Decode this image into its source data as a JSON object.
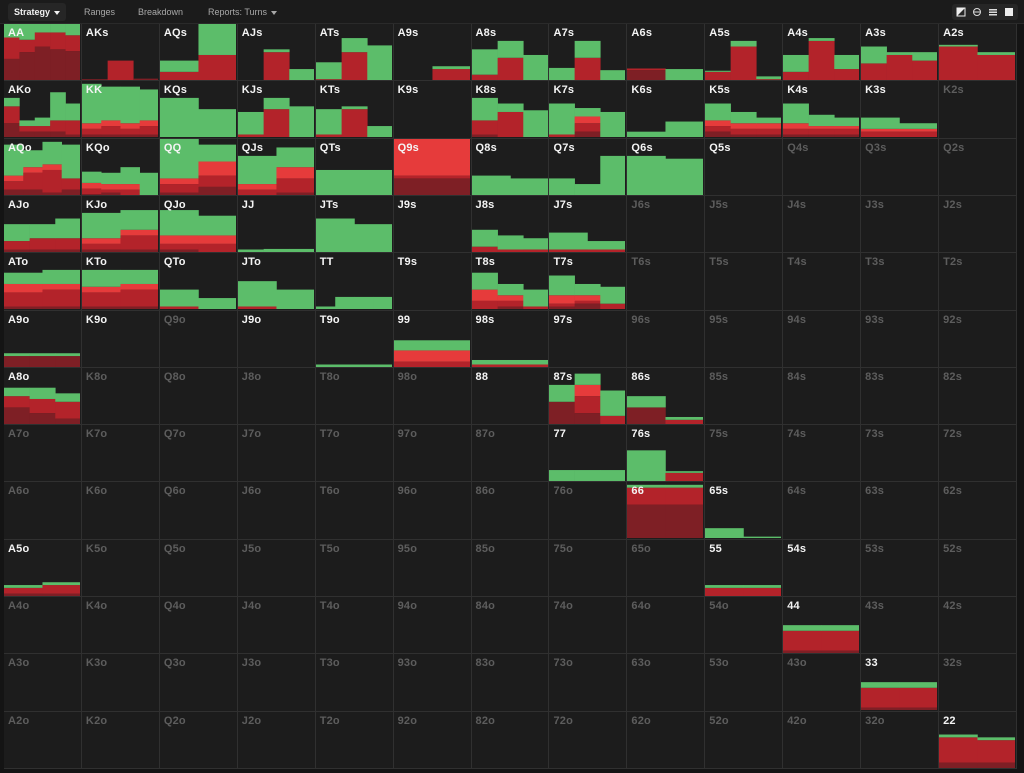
{
  "tabs": [
    {
      "id": "strategy",
      "label": "Strategy",
      "active": true,
      "dropdown": true
    },
    {
      "id": "ranges",
      "label": "Ranges",
      "active": false,
      "dropdown": false
    },
    {
      "id": "breakdown",
      "label": "Breakdown",
      "active": false,
      "dropdown": false
    },
    {
      "id": "reports",
      "label": "Reports: Turns",
      "active": false,
      "dropdown": true
    }
  ],
  "view_buttons": [
    "view-mode-1-icon",
    "view-mode-2-icon",
    "list-view-icon",
    "square-view-icon"
  ],
  "colors": {
    "green": "#5cbd6a",
    "red": "#b3232a",
    "bright_red": "#e63b3b",
    "dark_red": "#7e1f25",
    "cell_bg": "#1d1d1d"
  },
  "chart_data": {
    "type": "heatmap",
    "description_rows": [
      "A",
      "K",
      "Q",
      "J",
      "T",
      "9",
      "8",
      "7",
      "6",
      "5",
      "4",
      "3",
      "2"
    ],
    "hands": [
      [
        "AA",
        "AKs",
        "AQs",
        "AJs",
        "ATs",
        "A9s",
        "A8s",
        "A7s",
        "A6s",
        "A5s",
        "A4s",
        "A3s",
        "A2s"
      ],
      [
        "AKo",
        "KK",
        "KQs",
        "KJs",
        "KTs",
        "K9s",
        "K8s",
        "K7s",
        "K6s",
        "K5s",
        "K4s",
        "K3s",
        "K2s"
      ],
      [
        "AQo",
        "KQo",
        "QQ",
        "QJs",
        "QTs",
        "Q9s",
        "Q8s",
        "Q7s",
        "Q6s",
        "Q5s",
        "Q4s",
        "Q3s",
        "Q2s"
      ],
      [
        "AJo",
        "KJo",
        "QJo",
        "JJ",
        "JTs",
        "J9s",
        "J8s",
        "J7s",
        "J6s",
        "J5s",
        "J4s",
        "J3s",
        "J2s"
      ],
      [
        "ATo",
        "KTo",
        "QTo",
        "JTo",
        "TT",
        "T9s",
        "T8s",
        "T7s",
        "T6s",
        "T5s",
        "T4s",
        "T3s",
        "T2s"
      ],
      [
        "A9o",
        "K9o",
        "Q9o",
        "J9o",
        "T9o",
        "99",
        "98s",
        "97s",
        "96s",
        "95s",
        "94s",
        "93s",
        "92s"
      ],
      [
        "A8o",
        "K8o",
        "Q8o",
        "J8o",
        "T8o",
        "98o",
        "88",
        "87s",
        "86s",
        "85s",
        "84s",
        "83s",
        "82s"
      ],
      [
        "A7o",
        "K7o",
        "Q7o",
        "J7o",
        "T7o",
        "97o",
        "87o",
        "77",
        "76s",
        "75s",
        "74s",
        "73s",
        "72s"
      ],
      [
        "A6o",
        "K6o",
        "Q6o",
        "J6o",
        "T6o",
        "96o",
        "86o",
        "76o",
        "66",
        "65s",
        "64s",
        "63s",
        "62s"
      ],
      [
        "A5o",
        "K5o",
        "Q5o",
        "J5o",
        "T5o",
        "95o",
        "85o",
        "75o",
        "65o",
        "55",
        "54s",
        "53s",
        "52s"
      ],
      [
        "A4o",
        "K4o",
        "Q4o",
        "J4o",
        "T4o",
        "94o",
        "84o",
        "74o",
        "64o",
        "54o",
        "44",
        "43s",
        "42s"
      ],
      [
        "A3o",
        "K3o",
        "Q3o",
        "J3o",
        "T3o",
        "93o",
        "83o",
        "73o",
        "63o",
        "53o",
        "43o",
        "33",
        "32s"
      ],
      [
        "A2o",
        "K2o",
        "Q2o",
        "J2o",
        "T2o",
        "92o",
        "82o",
        "72o",
        "62o",
        "52o",
        "42o",
        "32o",
        "22"
      ]
    ],
    "active": [
      [
        1,
        1,
        1,
        1,
        1,
        1,
        1,
        1,
        1,
        1,
        1,
        1,
        1
      ],
      [
        1,
        1,
        1,
        1,
        1,
        1,
        1,
        1,
        1,
        1,
        1,
        1,
        0
      ],
      [
        1,
        1,
        1,
        1,
        1,
        1,
        1,
        1,
        1,
        1,
        0,
        0,
        0
      ],
      [
        1,
        1,
        1,
        1,
        1,
        1,
        1,
        1,
        0,
        0,
        0,
        0,
        0
      ],
      [
        1,
        1,
        1,
        1,
        1,
        1,
        1,
        1,
        0,
        0,
        0,
        0,
        0
      ],
      [
        1,
        1,
        0,
        1,
        1,
        1,
        1,
        1,
        0,
        0,
        0,
        0,
        0
      ],
      [
        1,
        0,
        0,
        0,
        0,
        0,
        1,
        1,
        1,
        0,
        0,
        0,
        0
      ],
      [
        0,
        0,
        0,
        0,
        0,
        0,
        0,
        1,
        1,
        0,
        0,
        0,
        0
      ],
      [
        0,
        0,
        0,
        0,
        0,
        0,
        0,
        0,
        1,
        1,
        0,
        0,
        0
      ],
      [
        1,
        0,
        0,
        0,
        0,
        0,
        0,
        0,
        0,
        1,
        1,
        0,
        0
      ],
      [
        0,
        0,
        0,
        0,
        0,
        0,
        0,
        0,
        0,
        0,
        1,
        0,
        0
      ],
      [
        0,
        0,
        0,
        0,
        0,
        0,
        0,
        0,
        0,
        0,
        0,
        1,
        0
      ],
      [
        0,
        0,
        0,
        0,
        0,
        0,
        0,
        0,
        0,
        0,
        0,
        0,
        1
      ]
    ],
    "bars": {
      "AA": [
        [
          1,
          0.38,
          0,
          0.38
        ],
        [
          0.3,
          0.22,
          0,
          0.5
        ],
        [
          0.7,
          0.25,
          0,
          0.6
        ],
        [
          0.35,
          0.3,
          0,
          0.55
        ],
        [
          0.2,
          0.28,
          0,
          0.52
        ]
      ],
      "AKs": [
        [
          0,
          0,
          0,
          0.02
        ],
        [
          0,
          0.35,
          0,
          0
        ],
        [
          0,
          0,
          0,
          0.03
        ]
      ],
      "AQs": [
        [
          0.2,
          0.15,
          0,
          0
        ],
        [
          0.55,
          0.45,
          0,
          0
        ]
      ],
      "AJs": [
        [
          0,
          0,
          0,
          0
        ],
        [
          0.05,
          0.5,
          0,
          0
        ],
        [
          0.2,
          0,
          0,
          0
        ]
      ],
      "ATs": [
        [
          0.3,
          0.02,
          0,
          0
        ],
        [
          0.25,
          0.5,
          0,
          0
        ],
        [
          0.62,
          0,
          0,
          0
        ]
      ],
      "A9s": [
        [
          0,
          0,
          0,
          0
        ],
        [
          0.05,
          0.2,
          0,
          0
        ]
      ],
      "A8s": [
        [
          0.45,
          0.1,
          0,
          0
        ],
        [
          0.3,
          0.4,
          0,
          0
        ],
        [
          0.45,
          0,
          0,
          0
        ]
      ],
      "A7s": [
        [
          0.22,
          0,
          0,
          0
        ],
        [
          0.3,
          0.4,
          0,
          0
        ],
        [
          0.18,
          0,
          0,
          0
        ]
      ],
      "A6s": [
        [
          0,
          0.03,
          0,
          0.18
        ],
        [
          0.2,
          0,
          0,
          0
        ]
      ],
      "A5s": [
        [
          0.02,
          0.15,
          0,
          0
        ],
        [
          0.1,
          0.6,
          0,
          0
        ],
        [
          0.05,
          0.02,
          0,
          0
        ]
      ],
      "A4s": [
        [
          0.3,
          0.15,
          0,
          0
        ],
        [
          0.05,
          0.7,
          0,
          0
        ],
        [
          0.25,
          0.2,
          0,
          0
        ]
      ],
      "A3s": [
        [
          0.3,
          0.3,
          0,
          0
        ],
        [
          0.05,
          0.45,
          0,
          0
        ],
        [
          0.15,
          0.35,
          0,
          0
        ]
      ],
      "A2s": [
        [
          0.03,
          0.6,
          0,
          0
        ],
        [
          0.05,
          0.45,
          0,
          0
        ]
      ],
      "AKo": [
        [
          0.15,
          0.3,
          0,
          0.25
        ],
        [
          0.1,
          0.1,
          0,
          0.1
        ],
        [
          0.15,
          0.1,
          0,
          0.1
        ],
        [
          0.5,
          0.2,
          0,
          0.1
        ],
        [
          0.3,
          0.25,
          0,
          0.05
        ]
      ],
      "KK": [
        [
          0.7,
          0.1,
          0.1,
          0.05
        ],
        [
          0.6,
          0.15,
          0.1,
          0.05
        ],
        [
          0.65,
          0.1,
          0.1,
          0.05
        ],
        [
          0.55,
          0.15,
          0.1,
          0.05
        ]
      ],
      "KQs": [
        [
          0.7,
          0,
          0,
          0
        ],
        [
          0.5,
          0,
          0,
          0
        ]
      ],
      "KJs": [
        [
          0.4,
          0.05,
          0,
          0
        ],
        [
          0.2,
          0.5,
          0,
          0
        ],
        [
          0.55,
          0,
          0,
          0
        ]
      ],
      "KTs": [
        [
          0.45,
          0.05,
          0,
          0
        ],
        [
          0.05,
          0.5,
          0,
          0
        ],
        [
          0.2,
          0,
          0,
          0
        ]
      ],
      "K9s": [],
      "K8s": [
        [
          0.4,
          0.25,
          0,
          0.05
        ],
        [
          0.15,
          0.45,
          0,
          0
        ],
        [
          0.48,
          0,
          0,
          0
        ]
      ],
      "K7s": [
        [
          0.55,
          0.05,
          0,
          0
        ],
        [
          0.15,
          0.15,
          0.12,
          0.1
        ],
        [
          0.45,
          0,
          0,
          0
        ]
      ],
      "K6s": [
        [
          0.1,
          0,
          0,
          0
        ],
        [
          0.28,
          0,
          0,
          0
        ]
      ],
      "K5s": [
        [
          0.3,
          0.1,
          0.1,
          0.1
        ],
        [
          0.2,
          0.1,
          0.1,
          0.05
        ],
        [
          0.1,
          0.1,
          0.1,
          0.05
        ]
      ],
      "K4s": [
        [
          0.35,
          0.1,
          0.1,
          0.05
        ],
        [
          0.2,
          0.1,
          0.05,
          0.05
        ],
        [
          0.15,
          0.1,
          0.05,
          0.05
        ]
      ],
      "K3s": [
        [
          0.2,
          0.1,
          0.05,
          0
        ],
        [
          0.1,
          0.1,
          0.05,
          0
        ]
      ],
      "AQo": [
        [
          0.55,
          0.15,
          0.1,
          0.1
        ],
        [
          0.3,
          0.3,
          0.1,
          0.1
        ],
        [
          0.4,
          0.4,
          0.1,
          0.05
        ],
        [
          0.6,
          0.2,
          0,
          0.1
        ]
      ],
      "KQo": [
        [
          0.2,
          0.1,
          0.1,
          0.02
        ],
        [
          0.2,
          0.05,
          0.1,
          0.05
        ],
        [
          0.3,
          0.1,
          0.1,
          0
        ],
        [
          0.4,
          0,
          0,
          0
        ]
      ],
      "QQ": [
        [
          0.7,
          0.15,
          0.1,
          0.05
        ],
        [
          0.3,
          0.2,
          0.25,
          0.15
        ]
      ],
      "QJs": [
        [
          0.5,
          0.1,
          0.1,
          0
        ],
        [
          0.35,
          0.25,
          0.2,
          0.05
        ]
      ],
      "QTs": [
        [
          0.45,
          0,
          0,
          0
        ],
        [
          0.45,
          0,
          0,
          0
        ]
      ],
      "Q9s": [
        [
          0.02,
          0.05,
          0.65,
          0.3
        ]
      ],
      "Q8s": [
        [
          0.35,
          0,
          0,
          0
        ],
        [
          0.3,
          0,
          0,
          0
        ]
      ],
      "Q7s": [
        [
          0.3,
          0,
          0,
          0
        ],
        [
          0.2,
          0,
          0,
          0
        ],
        [
          0.7,
          0,
          0,
          0
        ]
      ],
      "Q6s": [
        [
          0.7,
          0,
          0,
          0
        ],
        [
          0.65,
          0,
          0,
          0
        ]
      ],
      "Q5s": [],
      "AJo": [
        [
          0.3,
          0.15,
          0,
          0.05
        ],
        [
          0.25,
          0.2,
          0,
          0.05
        ],
        [
          0.35,
          0.2,
          0,
          0.05
        ]
      ],
      "KJo": [
        [
          0.45,
          0.1,
          0.1,
          0.05
        ],
        [
          0.35,
          0.25,
          0.1,
          0.05
        ]
      ],
      "QJo": [
        [
          0.45,
          0.1,
          0.15,
          0.05
        ],
        [
          0.35,
          0.15,
          0.15,
          0
        ]
      ],
      "JJ": [
        [
          0.05,
          0,
          0,
          0
        ],
        [
          0.06,
          0,
          0,
          0
        ],
        [
          0.06,
          0,
          0,
          0
        ]
      ],
      "JTs": [
        [
          0.6,
          0,
          0,
          0
        ],
        [
          0.5,
          0,
          0,
          0
        ]
      ],
      "J9s": [],
      "J8s": [
        [
          0.3,
          0.1,
          0,
          0
        ],
        [
          0.25,
          0.05,
          0,
          0
        ],
        [
          0.2,
          0.05,
          0,
          0
        ]
      ],
      "J7s": [
        [
          0.3,
          0.05,
          0,
          0
        ],
        [
          0.15,
          0.05,
          0,
          0
        ]
      ],
      "ATo": [
        [
          0.2,
          0.25,
          0.15,
          0.05
        ],
        [
          0.25,
          0.3,
          0.1,
          0.05
        ]
      ],
      "KTo": [
        [
          0.3,
          0.25,
          0.1,
          0.05
        ],
        [
          0.25,
          0.3,
          0.1,
          0.05
        ]
      ],
      "QTo": [
        [
          0.3,
          0.05,
          0,
          0
        ],
        [
          0.2,
          0,
          0,
          0
        ]
      ],
      "JTo": [
        [
          0.45,
          0.05,
          0,
          0
        ],
        [
          0.35,
          0,
          0,
          0
        ]
      ],
      "TT": [
        [
          0.05,
          0,
          0,
          0
        ],
        [
          0.22,
          0,
          0,
          0
        ],
        [
          0.22,
          0,
          0,
          0
        ],
        [
          0.22,
          0,
          0,
          0
        ]
      ],
      "T9s": [],
      "T8s": [
        [
          0.3,
          0.15,
          0.2,
          0
        ],
        [
          0.2,
          0.1,
          0.1,
          0.05
        ],
        [
          0.3,
          0.05,
          0,
          0
        ]
      ],
      "T7s": [
        [
          0.35,
          0.05,
          0.15,
          0.05
        ],
        [
          0.2,
          0.05,
          0.1,
          0.1
        ],
        [
          0.3,
          0.1,
          0,
          0
        ]
      ],
      "A9o": [
        [
          0.05,
          0,
          0,
          0.2
        ],
        [
          0.05,
          0,
          0,
          0.2
        ],
        [
          0.05,
          0,
          0,
          0.2
        ]
      ],
      "T9o": [
        [
          0.05,
          0,
          0,
          0
        ]
      ],
      "99": [
        [
          0.18,
          0.1,
          0.2,
          0
        ]
      ],
      "98s": [
        [
          0.08,
          0.05,
          0,
          0
        ]
      ],
      "97s": [],
      "A8o": [
        [
          0.15,
          0.2,
          0,
          0.3
        ],
        [
          0.2,
          0.25,
          0,
          0.2
        ],
        [
          0.15,
          0.3,
          0,
          0.1
        ]
      ],
      "88": [],
      "87s": [
        [
          0.3,
          0,
          0,
          0.4
        ],
        [
          0.2,
          0.3,
          0.2,
          0.2
        ],
        [
          0.45,
          0.15,
          0,
          0
        ]
      ],
      "86s": [
        [
          0.2,
          0,
          0,
          0.3
        ],
        [
          0.05,
          0.08,
          0,
          0
        ]
      ],
      "77": [
        [
          0.2,
          0,
          0,
          0
        ],
        [
          0.2,
          0,
          0,
          0
        ],
        [
          0.2,
          0,
          0,
          0
        ]
      ],
      "76s": [
        [
          0.55,
          0,
          0,
          0
        ],
        [
          0.03,
          0.15,
          0,
          0
        ]
      ],
      "66": [
        [
          0.05,
          0.3,
          0,
          0.6
        ],
        [
          0.05,
          0.3,
          0,
          0.6
        ]
      ],
      "65s": [
        [
          0.18,
          0,
          0,
          0
        ],
        [
          0.03,
          0,
          0,
          0
        ]
      ],
      "A5o": [
        [
          0.05,
          0.1,
          0,
          0.05
        ],
        [
          0.05,
          0.15,
          0,
          0.05
        ]
      ],
      "55": [
        [
          0.05,
          0.15,
          0,
          0
        ],
        [
          0.05,
          0.15,
          0,
          0
        ]
      ],
      "54s": [],
      "44": [
        [
          0.1,
          0.35,
          0,
          0.05
        ],
        [
          0.1,
          0.35,
          0,
          0.05
        ]
      ],
      "33": [
        [
          0.1,
          0.35,
          0,
          0.05
        ],
        [
          0.1,
          0.35,
          0,
          0.05
        ]
      ],
      "22": [
        [
          0.05,
          0.45,
          0,
          0.1
        ],
        [
          0.05,
          0.4,
          0,
          0.1
        ]
      ]
    }
  }
}
